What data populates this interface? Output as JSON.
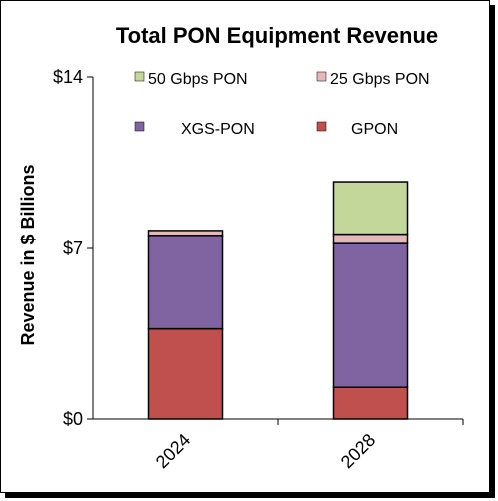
{
  "chart_data": {
    "type": "bar",
    "stacked": true,
    "title": "Total PON Equipment Revenue",
    "ylabel": "Revenue in $ Billions",
    "xlabel": "",
    "categories": [
      "2024",
      "2028"
    ],
    "ylim": [
      0,
      14
    ],
    "y_ticks": [
      {
        "value": 0,
        "label": "$0"
      },
      {
        "value": 7,
        "label": "$7"
      },
      {
        "value": 14,
        "label": "$14"
      }
    ],
    "grid": false,
    "legend_placement": "top",
    "series": [
      {
        "name": "GPON",
        "color": "#c0504d",
        "values": [
          3.7,
          1.3
        ]
      },
      {
        "name": "XGS-PON",
        "color": "#8064a2",
        "values": [
          3.8,
          5.9
        ]
      },
      {
        "name": "25 Gbps PON",
        "color": "#e6b9b8",
        "values": [
          0.2,
          0.35
        ]
      },
      {
        "name": "50 Gbps PON",
        "color": "#c4d79b",
        "values": [
          0.0,
          2.15
        ]
      }
    ]
  }
}
